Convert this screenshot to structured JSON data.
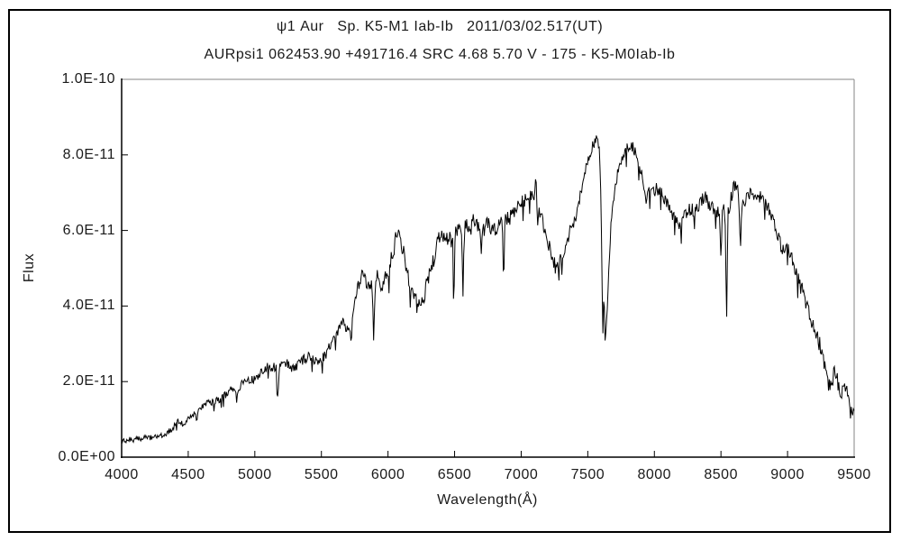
{
  "header": {
    "title": "ψ1 Aur   Sp. K5-M1 Iab-Ib   2011/03/02.517(UT)",
    "subtitle": "AURpsi1 062453.90 +491716.4 SRC 4.68 5.70 V - 175 - K5-M0Iab-Ib"
  },
  "chart_data": {
    "type": "line",
    "title": "ψ1 Aur Sp. K5-M1 Iab-Ib 2011/03/02.517(UT)",
    "subtitle": "AURpsi1 062453.90 +491716.4 SRC 4.68 5.70 V - 175 - K5-M0Iab-Ib",
    "xlabel": "Wavelength(Å)",
    "ylabel": "Flux",
    "xlim": [
      4000,
      9500
    ],
    "ylim_flux": [
      0,
      1e-10
    ],
    "flux_scale": 1e-11,
    "grid": false,
    "legend": false,
    "line_color": "#000000",
    "axis_color": "#000000",
    "frame_color": "#858585",
    "x_ticks": [
      {
        "value": 4000,
        "label": "4000"
      },
      {
        "value": 4500,
        "label": "4500"
      },
      {
        "value": 5000,
        "label": "5000"
      },
      {
        "value": 5500,
        "label": "5500"
      },
      {
        "value": 6000,
        "label": "6000"
      },
      {
        "value": 6500,
        "label": "6500"
      },
      {
        "value": 7000,
        "label": "7000"
      },
      {
        "value": 7500,
        "label": "7500"
      },
      {
        "value": 8000,
        "label": "8000"
      },
      {
        "value": 8500,
        "label": "8500"
      },
      {
        "value": 9000,
        "label": "9000"
      },
      {
        "value": 9500,
        "label": "9500"
      }
    ],
    "y_ticks": [
      {
        "value": 0,
        "label": "0.0E+00"
      },
      {
        "value": 2,
        "label": "2.0E-11"
      },
      {
        "value": 4,
        "label": "4.0E-11"
      },
      {
        "value": 6,
        "label": "6.0E-11"
      },
      {
        "value": 8,
        "label": "8.0E-11"
      },
      {
        "value": 10,
        "label": "1.0E-10"
      }
    ],
    "series": [
      {
        "name": "spectrum",
        "envelope_points_e11": [
          [
            4000,
            0.45
          ],
          [
            4030,
            0.42
          ],
          [
            4060,
            0.48
          ],
          [
            4090,
            0.45
          ],
          [
            4120,
            0.5
          ],
          [
            4150,
            0.47
          ],
          [
            4180,
            0.52
          ],
          [
            4210,
            0.5
          ],
          [
            4240,
            0.55
          ],
          [
            4270,
            0.52
          ],
          [
            4300,
            0.58
          ],
          [
            4330,
            0.62
          ],
          [
            4360,
            0.7
          ],
          [
            4390,
            0.8
          ],
          [
            4420,
            0.95
          ],
          [
            4440,
            0.85
          ],
          [
            4470,
            0.92
          ],
          [
            4500,
            1.0
          ],
          [
            4530,
            1.1
          ],
          [
            4560,
            1.2
          ],
          [
            4590,
            1.3
          ],
          [
            4620,
            1.4
          ],
          [
            4650,
            1.5
          ],
          [
            4680,
            1.45
          ],
          [
            4710,
            1.5
          ],
          [
            4740,
            1.55
          ],
          [
            4770,
            1.6
          ],
          [
            4800,
            1.75
          ],
          [
            4830,
            1.8
          ],
          [
            4860,
            1.7
          ],
          [
            4890,
            1.9
          ],
          [
            4920,
            1.95
          ],
          [
            4950,
            2.0
          ],
          [
            4980,
            2.05
          ],
          [
            5010,
            2.1
          ],
          [
            5040,
            2.2
          ],
          [
            5070,
            2.3
          ],
          [
            5100,
            2.4
          ],
          [
            5130,
            2.35
          ],
          [
            5160,
            2.4
          ],
          [
            5200,
            2.45
          ],
          [
            5230,
            2.5
          ],
          [
            5260,
            2.45
          ],
          [
            5290,
            2.3
          ],
          [
            5320,
            2.4
          ],
          [
            5350,
            2.55
          ],
          [
            5380,
            2.6
          ],
          [
            5410,
            2.65
          ],
          [
            5440,
            2.6
          ],
          [
            5470,
            2.45
          ],
          [
            5500,
            2.55
          ],
          [
            5530,
            2.7
          ],
          [
            5560,
            2.9
          ],
          [
            5590,
            3.1
          ],
          [
            5620,
            3.3
          ],
          [
            5650,
            3.6
          ],
          [
            5680,
            3.5
          ],
          [
            5710,
            3.3
          ],
          [
            5740,
            3.9
          ],
          [
            5770,
            4.4
          ],
          [
            5800,
            4.8
          ],
          [
            5830,
            4.7
          ],
          [
            5860,
            4.5
          ],
          [
            5890,
            4.5
          ],
          [
            5920,
            4.8
          ],
          [
            5950,
            4.6
          ],
          [
            5980,
            4.7
          ],
          [
            6010,
            5.0
          ],
          [
            6040,
            5.5
          ],
          [
            6070,
            5.9
          ],
          [
            6100,
            5.6
          ],
          [
            6130,
            5.2
          ],
          [
            6160,
            4.7
          ],
          [
            6190,
            4.3
          ],
          [
            6220,
            4.0
          ],
          [
            6250,
            4.1
          ],
          [
            6280,
            4.4
          ],
          [
            6310,
            4.8
          ],
          [
            6340,
            5.2
          ],
          [
            6370,
            5.6
          ],
          [
            6400,
            5.9
          ],
          [
            6430,
            5.7
          ],
          [
            6460,
            5.8
          ],
          [
            6490,
            5.7
          ],
          [
            6520,
            6.0
          ],
          [
            6550,
            5.9
          ],
          [
            6590,
            6.1
          ],
          [
            6620,
            6.0
          ],
          [
            6650,
            6.3
          ],
          [
            6680,
            6.0
          ],
          [
            6710,
            5.9
          ],
          [
            6740,
            6.2
          ],
          [
            6770,
            6.1
          ],
          [
            6800,
            6.0
          ],
          [
            6830,
            6.1
          ],
          [
            6900,
            6.3
          ],
          [
            6930,
            6.4
          ],
          [
            6960,
            6.5
          ],
          [
            6990,
            6.7
          ],
          [
            7020,
            6.8
          ],
          [
            7050,
            6.9
          ],
          [
            7080,
            7.0
          ],
          [
            7140,
            6.5
          ],
          [
            7170,
            6.1
          ],
          [
            7200,
            5.7
          ],
          [
            7230,
            5.3
          ],
          [
            7260,
            5.0
          ],
          [
            7290,
            5.2
          ],
          [
            7320,
            5.4
          ],
          [
            7350,
            5.8
          ],
          [
            7380,
            6.1
          ],
          [
            7410,
            6.4
          ],
          [
            7440,
            6.9
          ],
          [
            7470,
            7.3
          ],
          [
            7500,
            7.9
          ],
          [
            7530,
            8.2
          ],
          [
            7560,
            8.4
          ],
          [
            7585,
            8.3
          ],
          [
            7598,
            7.0
          ],
          [
            7612,
            3.6
          ],
          [
            7622,
            4.2
          ],
          [
            7630,
            3.05
          ],
          [
            7642,
            3.6
          ],
          [
            7655,
            4.6
          ],
          [
            7670,
            5.9
          ],
          [
            7690,
            6.8
          ],
          [
            7710,
            7.3
          ],
          [
            7730,
            7.6
          ],
          [
            7760,
            7.9
          ],
          [
            7790,
            8.1
          ],
          [
            7815,
            8.3
          ],
          [
            7840,
            8.2
          ],
          [
            7870,
            7.9
          ],
          [
            7900,
            7.6
          ],
          [
            7930,
            6.8
          ],
          [
            7960,
            7.0
          ],
          [
            7990,
            7.05
          ],
          [
            8020,
            7.1
          ],
          [
            8050,
            7.0
          ],
          [
            8080,
            6.8
          ],
          [
            8110,
            6.6
          ],
          [
            8140,
            6.4
          ],
          [
            8170,
            6.3
          ],
          [
            8200,
            6.1
          ],
          [
            8230,
            6.4
          ],
          [
            8260,
            6.6
          ],
          [
            8290,
            6.5
          ],
          [
            8320,
            6.6
          ],
          [
            8350,
            6.8
          ],
          [
            8380,
            6.9
          ],
          [
            8410,
            6.7
          ],
          [
            8440,
            6.6
          ],
          [
            8470,
            6.5
          ],
          [
            8520,
            6.5
          ],
          [
            8560,
            6.6
          ],
          [
            8590,
            7.1
          ],
          [
            8615,
            7.2
          ],
          [
            8670,
            6.7
          ],
          [
            8700,
            6.9
          ],
          [
            8730,
            7.0
          ],
          [
            8760,
            6.9
          ],
          [
            8790,
            6.9
          ],
          [
            8820,
            6.8
          ],
          [
            8850,
            6.6
          ],
          [
            8880,
            6.4
          ],
          [
            8910,
            6.0
          ],
          [
            8940,
            5.7
          ],
          [
            8970,
            5.4
          ],
          [
            9000,
            5.6
          ],
          [
            9030,
            5.3
          ],
          [
            9060,
            4.9
          ],
          [
            9090,
            4.6
          ],
          [
            9120,
            4.3
          ],
          [
            9150,
            4.0
          ],
          [
            9180,
            3.6
          ],
          [
            9210,
            3.3
          ],
          [
            9240,
            3.0
          ],
          [
            9270,
            2.6
          ],
          [
            9300,
            2.0
          ],
          [
            9330,
            1.8
          ],
          [
            9350,
            2.3
          ],
          [
            9380,
            1.9
          ],
          [
            9410,
            1.7
          ],
          [
            9440,
            1.9
          ],
          [
            9470,
            1.2
          ],
          [
            9500,
            1.0
          ]
        ],
        "absorption_lines_e11": [
          {
            "center": 5172,
            "min": 1.55,
            "sigma": 5
          },
          {
            "center": 5893,
            "min": 3.0,
            "sigma": 5
          },
          {
            "center": 6495,
            "min": 4.4,
            "sigma": 4
          },
          {
            "center": 6563,
            "min": 4.4,
            "sigma": 4
          },
          {
            "center": 6868,
            "min": 4.8,
            "sigma": 5
          },
          {
            "center": 8498,
            "min": 5.3,
            "sigma": 4
          },
          {
            "center": 8542,
            "min": 3.8,
            "sigma": 5
          },
          {
            "center": 8645,
            "min": 5.5,
            "sigma": 5
          }
        ],
        "emission_spike_e11": {
          "center": 7110,
          "peak": 7.5,
          "sigma": 4
        },
        "noise": {
          "seed": 977351,
          "sample_step_angstrom": 5.5,
          "amplitude_profile_e11": [
            [
              4000,
              0.06
            ],
            [
              4400,
              0.08
            ],
            [
              4800,
              0.11
            ],
            [
              5200,
              0.13
            ],
            [
              5600,
              0.15
            ],
            [
              6000,
              0.25
            ],
            [
              6400,
              0.25
            ],
            [
              6800,
              0.22
            ],
            [
              7200,
              0.2
            ],
            [
              7600,
              0.16
            ],
            [
              8000,
              0.18
            ],
            [
              8400,
              0.2
            ],
            [
              8800,
              0.18
            ],
            [
              9200,
              0.22
            ],
            [
              9500,
              0.25
            ]
          ],
          "deep_dip_threshold": -0.93,
          "deep_dip_factor": 2.6
        }
      }
    ]
  }
}
